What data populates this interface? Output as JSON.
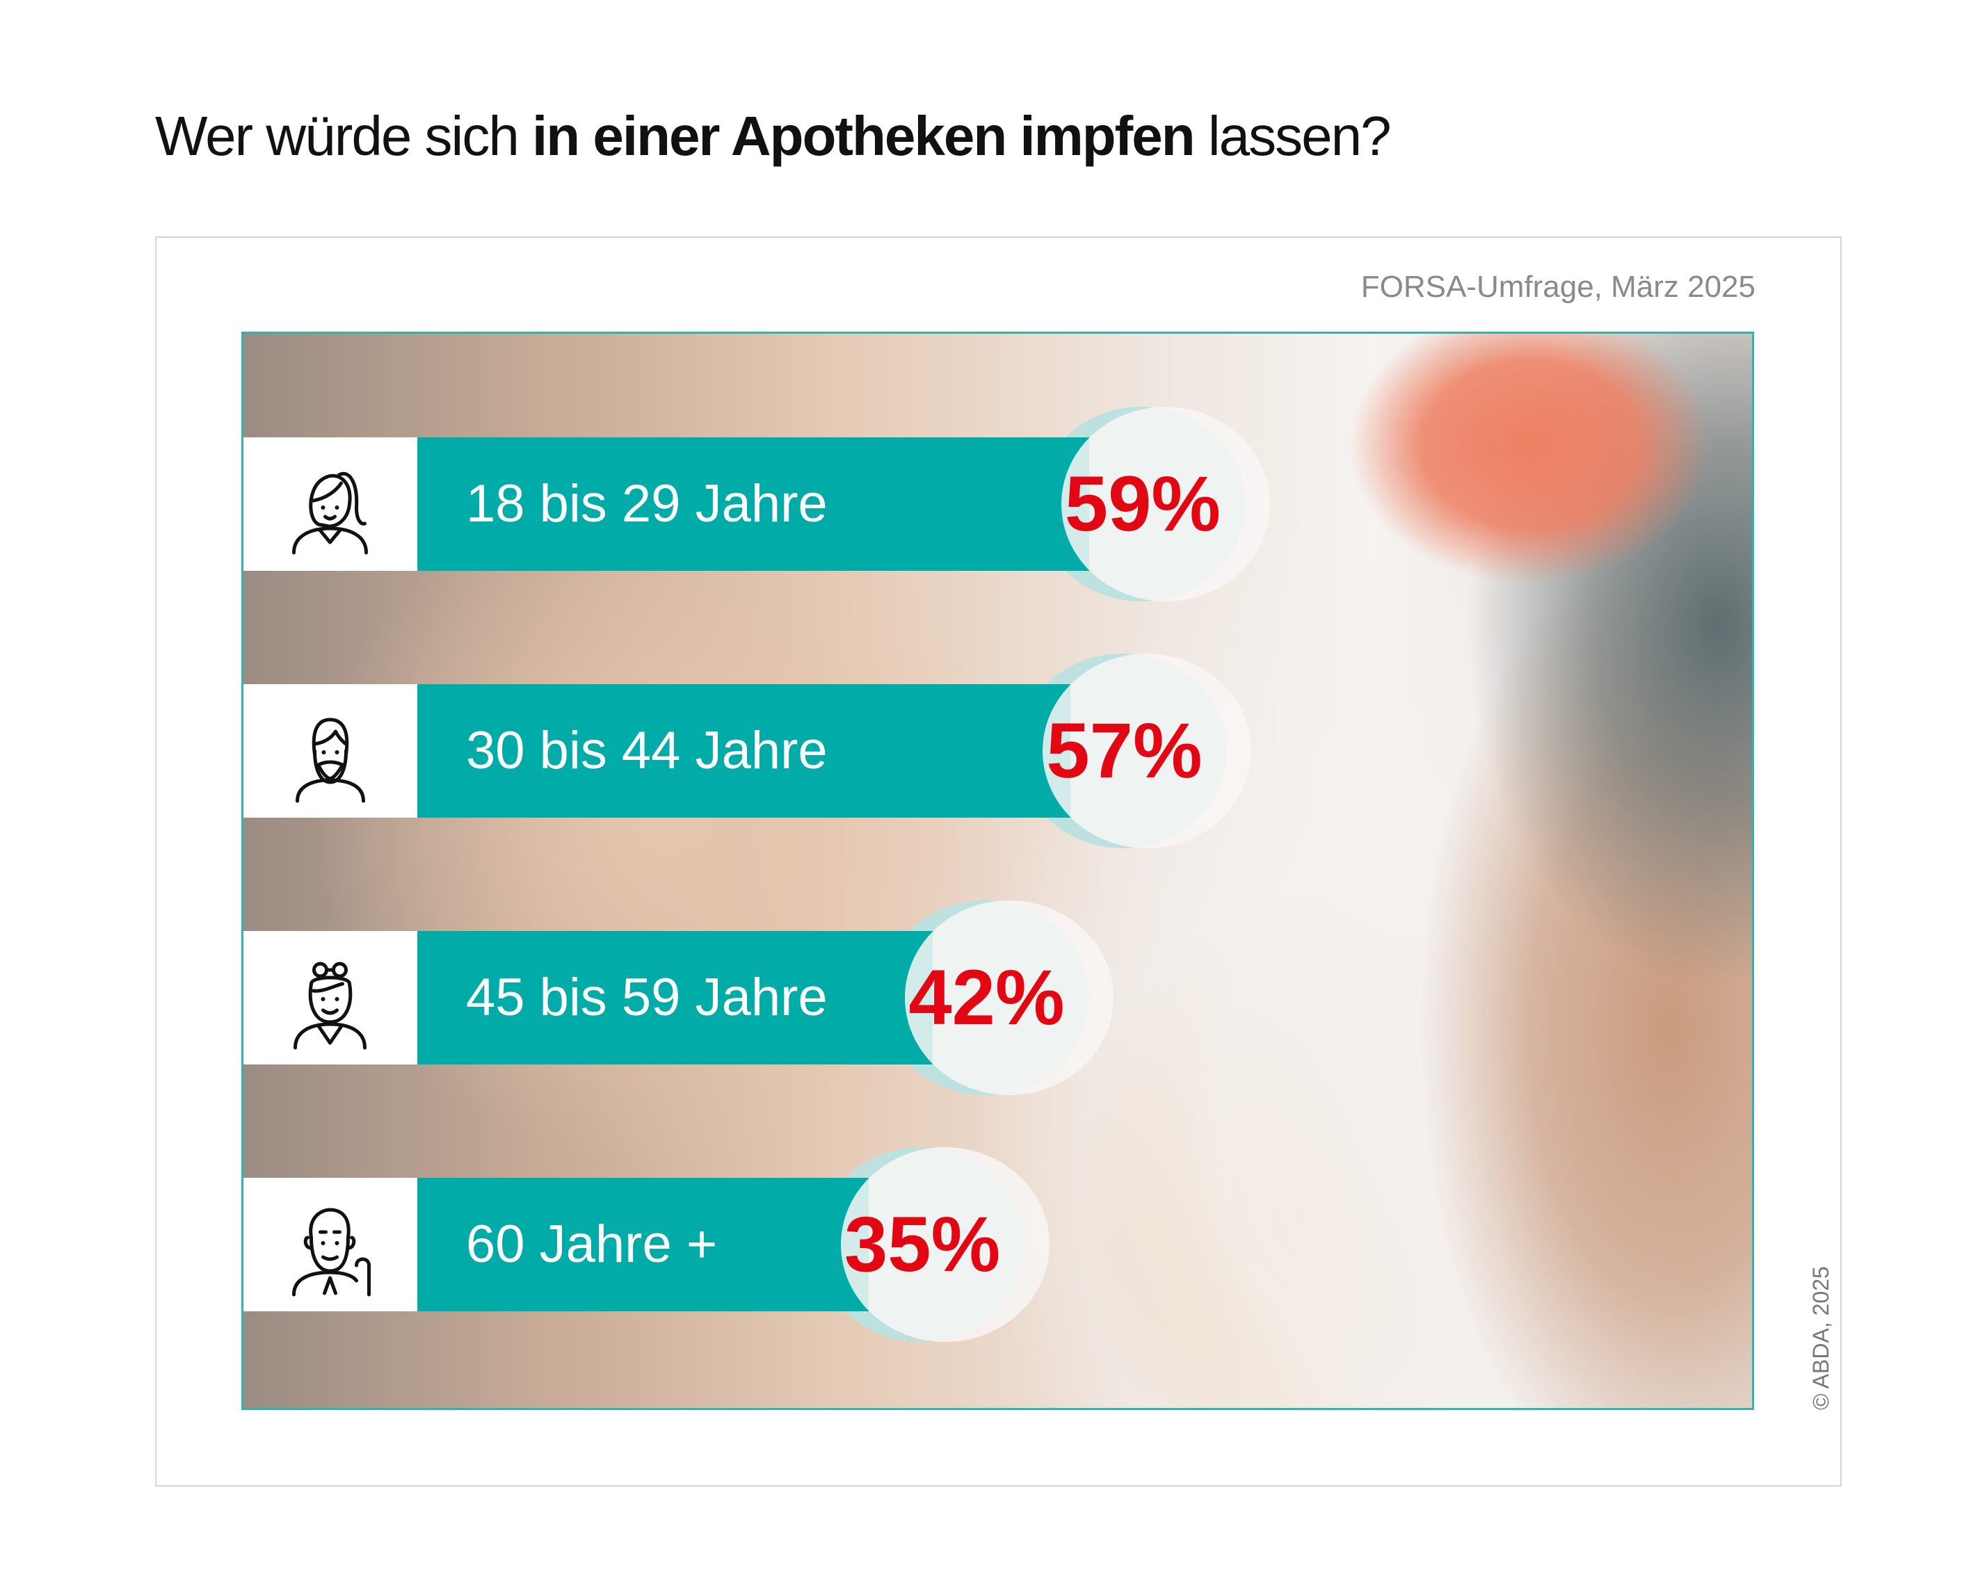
{
  "title": {
    "part1": "Wer würde",
    "part2": " sich ",
    "bold": "in einer Apotheken impfen",
    "part3": " lassen?"
  },
  "source": "FORSA-Umfrage, März 2025",
  "copyright": "© ABDA, 2025",
  "colors": {
    "bar": "#00aba8",
    "percent": "#e30613",
    "frame": "#33b3ad"
  },
  "chart_data": {
    "type": "bar",
    "orientation": "horizontal",
    "categories": [
      "18 bis 29 Jahre",
      "30 bis 44 Jahre",
      "45 bis 59 Jahre",
      "60 Jahre +"
    ],
    "values": [
      59,
      57,
      42,
      35
    ],
    "labels": [
      "59%",
      "57%",
      "42%",
      "35%"
    ],
    "icons": [
      "young-woman-icon",
      "bearded-man-icon",
      "woman-glasses-icon",
      "senior-man-cane-icon"
    ],
    "unit": "%"
  }
}
